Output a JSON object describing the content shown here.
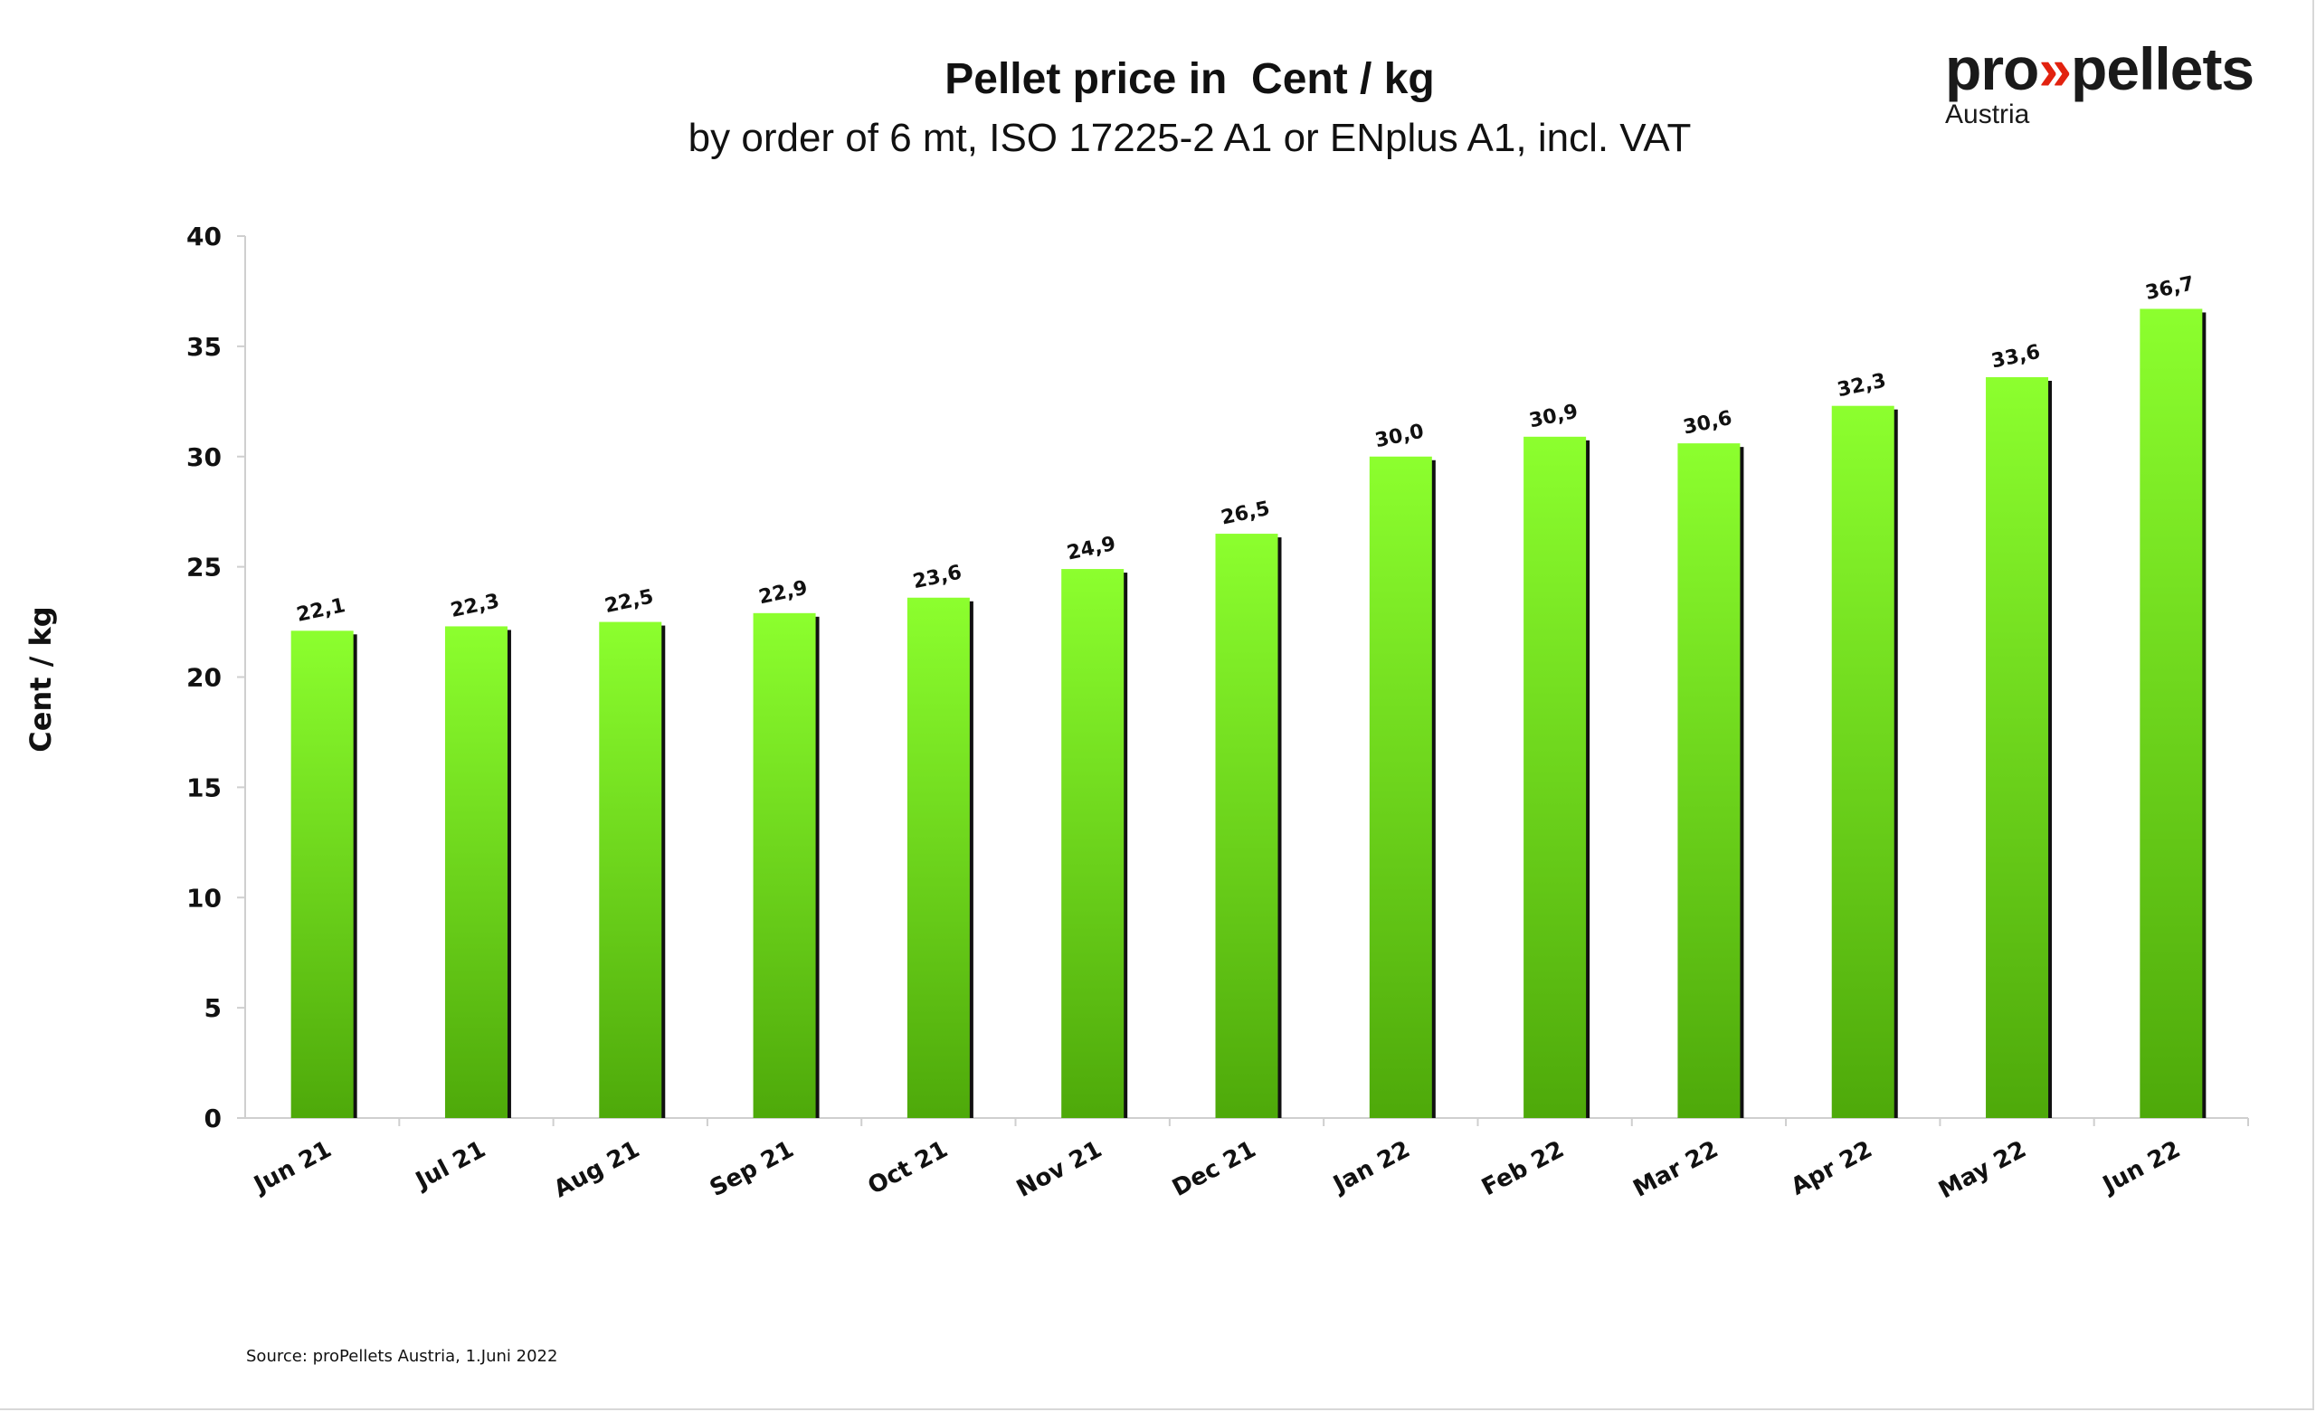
{
  "logo": {
    "word_left": "pro",
    "chevron": "»",
    "word_right": "pellets",
    "subtitle": "Austria"
  },
  "source": "Source: proPellets Austria, 1.Juni 2022",
  "chart_data": {
    "type": "bar",
    "title": "Pellet price in  Cent / kg",
    "subtitle": "by order of 6 mt, ISO 17225-2 A1 or ENplus A1, incl. VAT",
    "xlabel": "",
    "ylabel": "Cent / kg",
    "ylim": [
      0,
      40
    ],
    "yticks": [
      0,
      5,
      10,
      15,
      20,
      25,
      30,
      35,
      40
    ],
    "categories": [
      "Jun 21",
      "Jul 21",
      "Aug 21",
      "Sep 21",
      "Oct 21",
      "Nov 21",
      "Dec 21",
      "Jan 22",
      "Feb 22",
      "Mar 22",
      "Apr 22",
      "May 22",
      "Jun 22"
    ],
    "values": [
      22.1,
      22.3,
      22.5,
      22.9,
      23.6,
      24.9,
      26.5,
      30.0,
      30.9,
      30.6,
      32.3,
      33.6,
      36.7
    ],
    "data_labels": [
      "22,1",
      "22,3",
      "22,5",
      "22,9",
      "23,6",
      "24,9",
      "26,5",
      "30,0",
      "30,9",
      "30,6",
      "32,3",
      "33,6",
      "36,7"
    ],
    "grid": false,
    "bar_color_top": "#8cff2e",
    "bar_color_bottom": "#4ea90a"
  }
}
